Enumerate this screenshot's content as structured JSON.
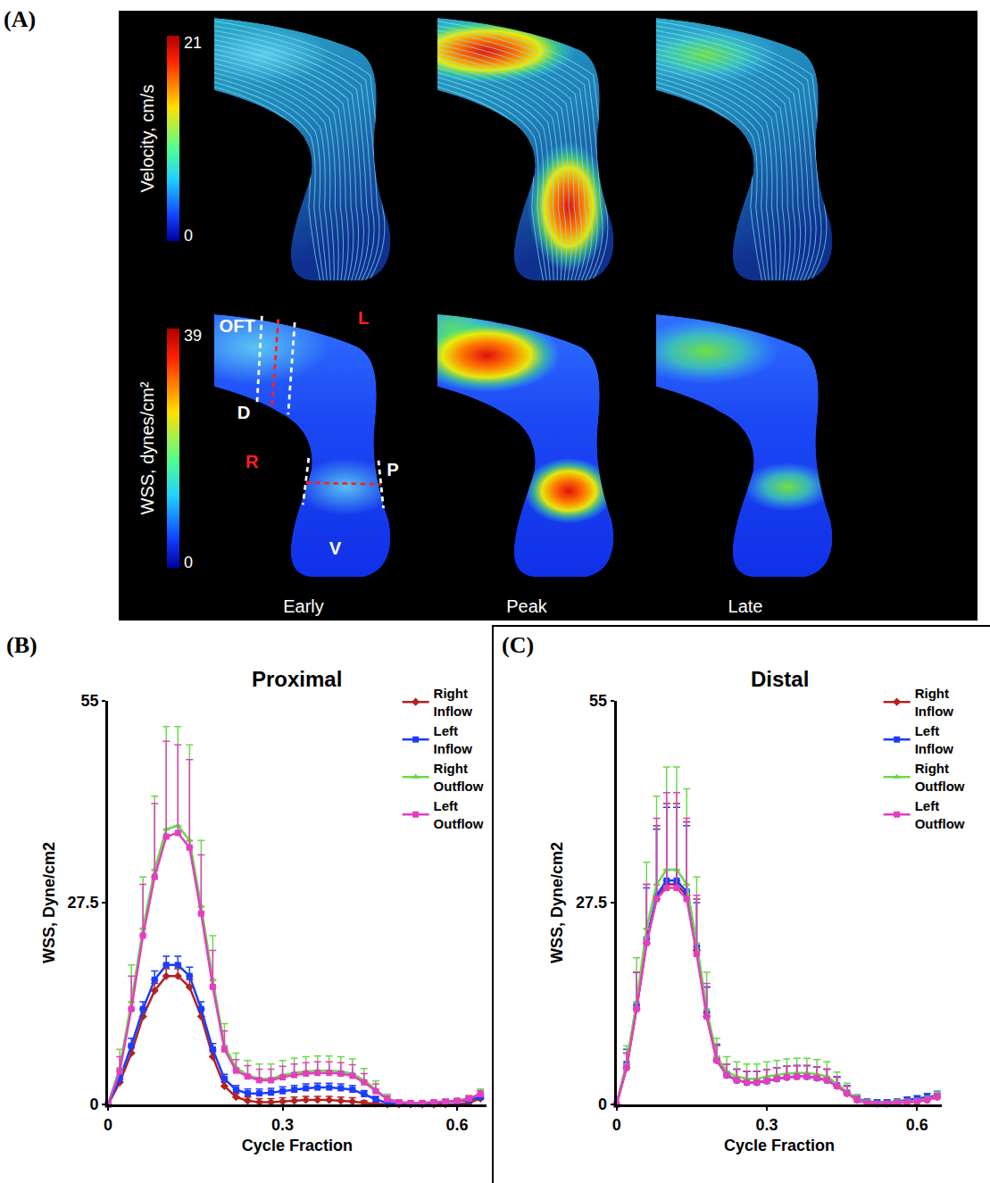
{
  "panel_a": {
    "label": "(A)",
    "velocity_colorbar": {
      "title": "Velocity, cm/s",
      "range": [
        0,
        21
      ]
    },
    "wss_colorbar": {
      "title": "WSS, dynes/cm²",
      "range": [
        0,
        39
      ]
    },
    "phases": [
      "Early",
      "Peak",
      "Late"
    ],
    "region_labels": {
      "outflow_tract": "OFT",
      "left": "L",
      "distal": "D",
      "right": "R",
      "proximal": "P",
      "ventricle": "V"
    }
  },
  "chart_data": [
    {
      "type": "line",
      "label": "(B)",
      "title": "Proximal",
      "x_label": "Cycle Fraction",
      "y_label": "WSS, Dyne/cm2",
      "x": [
        0,
        0.02,
        0.04,
        0.06,
        0.08,
        0.1,
        0.12,
        0.14,
        0.16,
        0.18,
        0.2,
        0.22,
        0.24,
        0.26,
        0.28,
        0.3,
        0.32,
        0.34,
        0.36,
        0.38,
        0.4,
        0.42,
        0.44,
        0.46,
        0.48,
        0.5,
        0.52,
        0.54,
        0.56,
        0.58,
        0.6,
        0.62,
        0.64
      ],
      "xlim": [
        0,
        0.65
      ],
      "xticks": [
        0,
        0.3,
        0.6
      ],
      "ylim": [
        0,
        55
      ],
      "yticks": [
        0,
        27.5,
        55
      ],
      "grid": false,
      "legend": "upper right",
      "series": [
        {
          "name": "Right Inflow",
          "color": "#b22222",
          "marker": "diamond",
          "values": [
            0,
            3,
            7,
            12,
            15.5,
            17.5,
            17.5,
            16,
            12,
            6.5,
            2.5,
            1,
            0.5,
            0.3,
            0.3,
            0.4,
            0.5,
            0.6,
            0.6,
            0.6,
            0.5,
            0.4,
            0.2,
            0.1,
            0,
            0,
            0,
            0,
            0,
            0,
            0,
            0.2,
            0.8
          ],
          "errors": [
            0,
            0.5,
            0.8,
            1,
            1,
            1,
            1,
            1,
            1,
            0.8,
            0.5,
            0.5,
            0.5,
            0.5,
            0.5,
            0.5,
            0.5,
            0.5,
            0.5,
            0.5,
            0.5,
            0.5,
            0.3,
            0.2,
            0,
            0,
            0,
            0,
            0,
            0,
            0,
            0.2,
            0.3
          ]
        },
        {
          "name": "Left Inflow",
          "color": "#1a3cff",
          "marker": "square",
          "values": [
            0,
            3.5,
            8,
            13,
            17,
            19,
            19,
            17.5,
            13,
            7.5,
            3.5,
            2,
            1.5,
            1.5,
            1.6,
            1.8,
            2,
            2.2,
            2.3,
            2.3,
            2.2,
            2,
            1.4,
            0.7,
            0.2,
            0.1,
            0.1,
            0.1,
            0.2,
            0.3,
            0.4,
            0.6,
            1
          ],
          "errors": [
            0,
            0.5,
            1,
            1,
            1.2,
            1.2,
            1.2,
            1.2,
            1,
            0.8,
            0.6,
            0.6,
            0.6,
            0.6,
            0.6,
            0.6,
            0.6,
            0.6,
            0.6,
            0.6,
            0.6,
            0.6,
            0.5,
            0.4,
            0.2,
            0.1,
            0.1,
            0.1,
            0.1,
            0.2,
            0.2,
            0.3,
            0.4
          ]
        },
        {
          "name": "Right Outflow",
          "color": "#6ad94a",
          "marker": "triangle-up",
          "values": [
            0,
            5,
            14,
            24,
            32,
            37.5,
            38,
            36,
            27,
            17,
            8,
            5,
            4,
            3.5,
            3.5,
            4,
            4.3,
            4.5,
            4.6,
            4.6,
            4.5,
            4.2,
            3.3,
            2,
            0.8,
            0.3,
            0.2,
            0.2,
            0.3,
            0.4,
            0.5,
            0.8,
            1.5
          ],
          "errors": [
            0,
            2.5,
            5,
            7,
            10,
            14,
            13.5,
            13,
            9,
            6,
            3,
            2,
            2,
            2,
            2,
            2,
            2,
            2,
            2,
            2,
            2,
            2,
            1.6,
            1.2,
            0.6,
            0.3,
            0.2,
            0.2,
            0.3,
            0.3,
            0.3,
            0.4,
            0.6
          ]
        },
        {
          "name": "Left Outflow",
          "color": "#e23fbf",
          "marker": "square",
          "values": [
            0,
            4.5,
            13,
            23,
            31,
            36.5,
            37,
            35,
            26,
            16,
            7.5,
            4.6,
            3.8,
            3.3,
            3.3,
            3.7,
            4,
            4.2,
            4.3,
            4.3,
            4.2,
            3.9,
            3,
            1.8,
            0.7,
            0.3,
            0.2,
            0.2,
            0.3,
            0.4,
            0.5,
            0.8,
            1.4
          ],
          "errors": [
            0,
            2,
            4.5,
            7,
            10,
            13,
            12,
            12,
            8,
            5,
            2.5,
            1.5,
            1.5,
            1.5,
            1.5,
            1.5,
            1.5,
            1.5,
            1.5,
            1.5,
            1.5,
            1.5,
            1.2,
            1,
            0.5,
            0.3,
            0.2,
            0.2,
            0.2,
            0.3,
            0.3,
            0.4,
            0.5
          ]
        }
      ]
    },
    {
      "type": "line",
      "label": "(C)",
      "title": "Distal",
      "x_label": "Cycle Fraction",
      "y_label": "WSS, Dyne/cm2",
      "x": [
        0,
        0.02,
        0.04,
        0.06,
        0.08,
        0.1,
        0.12,
        0.14,
        0.16,
        0.18,
        0.2,
        0.22,
        0.24,
        0.26,
        0.28,
        0.3,
        0.32,
        0.34,
        0.36,
        0.38,
        0.4,
        0.42,
        0.44,
        0.46,
        0.48,
        0.5,
        0.52,
        0.54,
        0.56,
        0.58,
        0.6,
        0.62,
        0.64
      ],
      "xlim": [
        0,
        0.65
      ],
      "xticks": [
        0,
        0.3,
        0.6
      ],
      "ylim": [
        0,
        55
      ],
      "yticks": [
        0,
        27.5,
        55
      ],
      "grid": false,
      "legend": "upper right",
      "series": [
        {
          "name": "Right Inflow",
          "color": "#b22222",
          "marker": "diamond",
          "values": [
            0,
            5,
            13,
            22,
            28,
            30,
            30,
            28.5,
            21,
            12,
            6,
            4,
            3.3,
            3,
            3,
            3.2,
            3.5,
            3.7,
            3.8,
            3.8,
            3.6,
            3.3,
            2.5,
            1.5,
            0.6,
            0.2,
            0.1,
            0.1,
            0.2,
            0.3,
            0.4,
            0.6,
            1
          ],
          "errors": [
            0,
            2,
            5,
            8,
            10,
            11,
            11,
            10,
            7,
            4,
            2,
            1.5,
            1.5,
            1.5,
            1.5,
            1.5,
            1.5,
            1.5,
            1.5,
            1.5,
            1.5,
            1.5,
            1.2,
            1,
            0.5,
            0.3,
            0.2,
            0.2,
            0.3,
            0.3,
            0.3,
            0.4,
            0.5
          ]
        },
        {
          "name": "Left Inflow",
          "color": "#1a3cff",
          "marker": "square",
          "values": [
            0,
            5.5,
            13.5,
            22.5,
            28.5,
            30.5,
            30.5,
            29,
            21.5,
            12.5,
            6.2,
            4,
            3.3,
            3,
            3,
            3.2,
            3.5,
            3.7,
            3.8,
            3.8,
            3.6,
            3.3,
            2.6,
            1.6,
            0.8,
            0.4,
            0.3,
            0.3,
            0.4,
            0.6,
            0.8,
            1,
            1.2
          ],
          "errors": [
            0,
            2,
            4.5,
            7,
            9,
            10,
            10,
            9,
            6,
            3.5,
            2,
            1.5,
            1.5,
            1.5,
            1.5,
            1.5,
            1.5,
            1.5,
            1.5,
            1.5,
            1.5,
            1.5,
            1.2,
            1,
            0.5,
            0.3,
            0.3,
            0.3,
            0.3,
            0.4,
            0.4,
            0.5,
            0.6
          ]
        },
        {
          "name": "Right Outflow",
          "color": "#6ad94a",
          "marker": "triangle-up",
          "values": [
            0,
            5.5,
            14,
            24,
            30,
            32,
            32,
            30,
            22,
            13,
            6.5,
            4.5,
            3.8,
            3.5,
            3.5,
            3.8,
            4,
            4.2,
            4.3,
            4.3,
            4.1,
            3.8,
            2.8,
            1.7,
            0.7,
            0.3,
            0.2,
            0.2,
            0.3,
            0.4,
            0.5,
            0.7,
            1.1
          ],
          "errors": [
            0,
            2.5,
            6,
            9,
            12,
            14,
            14,
            13,
            9,
            5,
            2.5,
            2,
            2,
            2,
            2,
            2,
            2,
            2,
            2,
            2,
            2,
            2,
            1.6,
            1.2,
            0.6,
            0.3,
            0.2,
            0.2,
            0.3,
            0.3,
            0.3,
            0.4,
            0.6
          ]
        },
        {
          "name": "Left Outflow",
          "color": "#e23fbf",
          "marker": "square",
          "values": [
            0,
            5,
            13,
            22,
            28,
            29.5,
            29.5,
            28,
            20.5,
            12,
            6,
            4,
            3.3,
            3,
            3,
            3.2,
            3.5,
            3.7,
            3.8,
            3.8,
            3.6,
            3.3,
            2.5,
            1.5,
            0.6,
            0.2,
            0.1,
            0.1,
            0.2,
            0.3,
            0.4,
            0.6,
            1
          ],
          "errors": [
            0,
            2,
            5,
            8,
            11,
            13,
            13,
            11,
            8,
            4.5,
            2,
            1.5,
            1.5,
            1.5,
            1.5,
            1.5,
            1.5,
            1.5,
            1.5,
            1.5,
            1.5,
            1.5,
            1.2,
            1,
            0.5,
            0.3,
            0.2,
            0.2,
            0.3,
            0.3,
            0.3,
            0.4,
            0.5
          ]
        }
      ]
    }
  ]
}
